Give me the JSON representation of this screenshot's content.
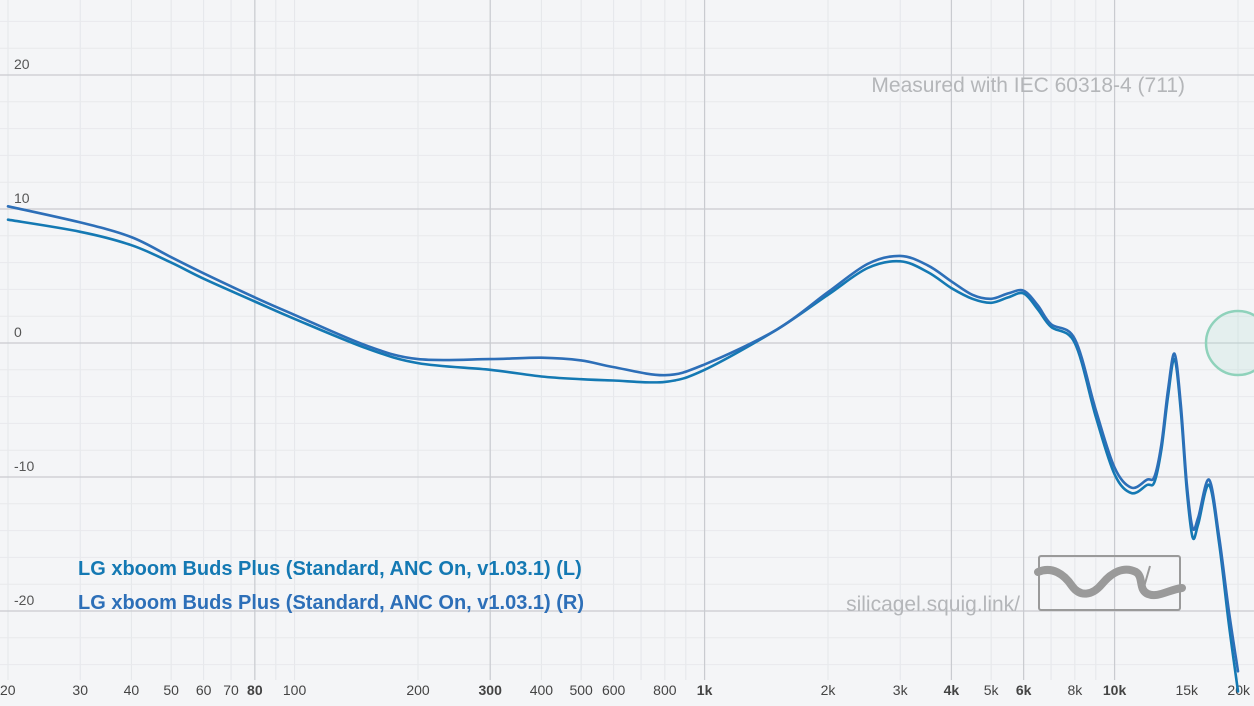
{
  "chart_data": {
    "type": "line",
    "title": "",
    "xlabel": "",
    "ylabel": "",
    "x_scale": "log",
    "xlim": [
      20,
      20000
    ],
    "ylim": [
      -25,
      25
    ],
    "grid": true,
    "y_ticks": [
      "20",
      "10",
      "0",
      "-10",
      "-20"
    ],
    "y_tick_values": [
      20,
      10,
      0,
      -10,
      -20
    ],
    "x_ticks": [
      {
        "label": "20",
        "value": 20,
        "major": false
      },
      {
        "label": "30",
        "value": 30,
        "major": false
      },
      {
        "label": "40",
        "value": 40,
        "major": false
      },
      {
        "label": "50",
        "value": 50,
        "major": false
      },
      {
        "label": "60",
        "value": 60,
        "major": false
      },
      {
        "label": "70",
        "value": 70,
        "major": false
      },
      {
        "label": "80",
        "value": 80,
        "major": true
      },
      {
        "label": "100",
        "value": 100,
        "major": false
      },
      {
        "label": "200",
        "value": 200,
        "major": false
      },
      {
        "label": "300",
        "value": 300,
        "major": true
      },
      {
        "label": "400",
        "value": 400,
        "major": false
      },
      {
        "label": "500",
        "value": 500,
        "major": false
      },
      {
        "label": "600",
        "value": 600,
        "major": false
      },
      {
        "label": "800",
        "value": 800,
        "major": false
      },
      {
        "label": "1k",
        "value": 1000,
        "major": true
      },
      {
        "label": "2k",
        "value": 2000,
        "major": false
      },
      {
        "label": "3k",
        "value": 3000,
        "major": false
      },
      {
        "label": "4k",
        "value": 4000,
        "major": true
      },
      {
        "label": "5k",
        "value": 5000,
        "major": false
      },
      {
        "label": "6k",
        "value": 6000,
        "major": true
      },
      {
        "label": "8k",
        "value": 8000,
        "major": false
      },
      {
        "label": "10k",
        "value": 10000,
        "major": true
      },
      {
        "label": "15k",
        "value": 15000,
        "major": false
      },
      {
        "label": "20k",
        "value": 20000,
        "major": false
      }
    ],
    "annotations": {
      "measurement": "Measured with IEC 60318-4 (711)",
      "site": "silicagel.squig.link/"
    },
    "legend_position": "bottom-left",
    "series": [
      {
        "name": "LG xboom Buds Plus (Standard, ANC On, v1.03.1) (L)",
        "color": "#1479b3",
        "points": [
          [
            20,
            9.2
          ],
          [
            30,
            8.3
          ],
          [
            40,
            7.3
          ],
          [
            50,
            6.0
          ],
          [
            60,
            4.8
          ],
          [
            80,
            3.1
          ],
          [
            100,
            1.8
          ],
          [
            150,
            -0.4
          ],
          [
            200,
            -1.5
          ],
          [
            300,
            -2.0
          ],
          [
            400,
            -2.5
          ],
          [
            500,
            -2.7
          ],
          [
            600,
            -2.8
          ],
          [
            800,
            -2.9
          ],
          [
            1000,
            -2.0
          ],
          [
            1500,
            1.0
          ],
          [
            2000,
            3.6
          ],
          [
            2500,
            5.6
          ],
          [
            3000,
            6.1
          ],
          [
            3500,
            5.3
          ],
          [
            4000,
            4.1
          ],
          [
            4500,
            3.3
          ],
          [
            5000,
            3.0
          ],
          [
            5500,
            3.4
          ],
          [
            6000,
            3.7
          ],
          [
            6500,
            2.5
          ],
          [
            7000,
            1.2
          ],
          [
            8000,
            0.0
          ],
          [
            9000,
            -5.5
          ],
          [
            10000,
            -9.8
          ],
          [
            11000,
            -11.2
          ],
          [
            12000,
            -10.6
          ],
          [
            12500,
            -10.4
          ],
          [
            13000,
            -8.0
          ],
          [
            13500,
            -4.0
          ],
          [
            14000,
            -1.2
          ],
          [
            14500,
            -5.0
          ],
          [
            15000,
            -11.0
          ],
          [
            15500,
            -14.5
          ],
          [
            16000,
            -13.5
          ],
          [
            17000,
            -10.6
          ],
          [
            18000,
            -15.0
          ],
          [
            19000,
            -21.0
          ],
          [
            20000,
            -26.0
          ]
        ]
      },
      {
        "name": "LG xboom Buds Plus (Standard, ANC On, v1.03.1) (R)",
        "color": "#2d6fb8",
        "points": [
          [
            20,
            10.2
          ],
          [
            30,
            9.0
          ],
          [
            40,
            7.9
          ],
          [
            50,
            6.4
          ],
          [
            60,
            5.2
          ],
          [
            80,
            3.4
          ],
          [
            100,
            2.1
          ],
          [
            150,
            -0.2
          ],
          [
            200,
            -1.2
          ],
          [
            300,
            -1.2
          ],
          [
            400,
            -1.1
          ],
          [
            500,
            -1.3
          ],
          [
            600,
            -1.8
          ],
          [
            800,
            -2.4
          ],
          [
            1000,
            -1.6
          ],
          [
            1500,
            1.0
          ],
          [
            2000,
            3.8
          ],
          [
            2500,
            5.9
          ],
          [
            3000,
            6.5
          ],
          [
            3500,
            5.8
          ],
          [
            4000,
            4.6
          ],
          [
            4500,
            3.6
          ],
          [
            5000,
            3.3
          ],
          [
            5500,
            3.7
          ],
          [
            6000,
            3.9
          ],
          [
            6500,
            2.8
          ],
          [
            7000,
            1.4
          ],
          [
            8000,
            0.3
          ],
          [
            9000,
            -5.0
          ],
          [
            10000,
            -9.3
          ],
          [
            11000,
            -10.8
          ],
          [
            12000,
            -10.2
          ],
          [
            12500,
            -10.0
          ],
          [
            13000,
            -7.6
          ],
          [
            13500,
            -3.5
          ],
          [
            14000,
            -0.8
          ],
          [
            14500,
            -4.5
          ],
          [
            15000,
            -10.5
          ],
          [
            15500,
            -13.8
          ],
          [
            16000,
            -13.0
          ],
          [
            17000,
            -10.2
          ],
          [
            18000,
            -14.5
          ],
          [
            19000,
            -20.0
          ],
          [
            20000,
            -24.5
          ]
        ]
      }
    ]
  }
}
